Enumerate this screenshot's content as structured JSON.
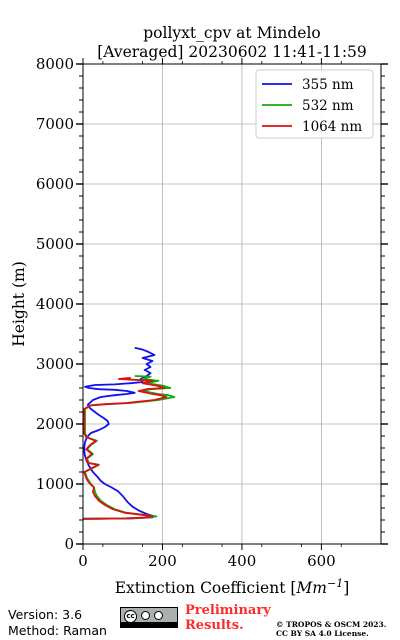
{
  "chart_data": {
    "type": "line",
    "title_line1": "pollyxt_cpv at Mindelo",
    "title_line2": "[Averaged] 20230602 11:41-11:59",
    "xlabel_prefix": "Extinction Coefficient [",
    "xlabel_unit": "Mm",
    "xlabel_exp": "−1",
    "xlabel_suffix": "]",
    "ylabel": "Height (m)",
    "xlim": [
      0,
      750
    ],
    "ylim": [
      0,
      8000
    ],
    "xticks": [
      0,
      200,
      400,
      600
    ],
    "xtick_labels": [
      "0",
      "200",
      "400",
      "600"
    ],
    "yticks": [
      0,
      1000,
      2000,
      3000,
      4000,
      5000,
      6000,
      7000,
      8000
    ],
    "ytick_labels": [
      "0",
      "1000",
      "2000",
      "3000",
      "4000",
      "5000",
      "6000",
      "7000",
      "8000"
    ],
    "grid": true,
    "legend_position": "top-right",
    "series": [
      {
        "name": "355 nm",
        "color": "#1111ee",
        "points": [
          [
            0,
            420
          ],
          [
            120,
            425
          ],
          [
            175,
            445
          ],
          [
            178,
            465
          ],
          [
            160,
            500
          ],
          [
            140,
            560
          ],
          [
            125,
            620
          ],
          [
            112,
            700
          ],
          [
            100,
            800
          ],
          [
            88,
            880
          ],
          [
            70,
            950
          ],
          [
            55,
            1000
          ],
          [
            45,
            1050
          ],
          [
            35,
            1130
          ],
          [
            25,
            1200
          ],
          [
            15,
            1300
          ],
          [
            8,
            1400
          ],
          [
            4,
            1500
          ],
          [
            3,
            1600
          ],
          [
            5,
            1700
          ],
          [
            10,
            1780
          ],
          [
            20,
            1850
          ],
          [
            40,
            1900
          ],
          [
            55,
            1950
          ],
          [
            65,
            2000
          ],
          [
            62,
            2050
          ],
          [
            52,
            2100
          ],
          [
            40,
            2150
          ],
          [
            30,
            2200
          ],
          [
            18,
            2260
          ],
          [
            12,
            2320
          ],
          [
            25,
            2400
          ],
          [
            45,
            2450
          ],
          [
            80,
            2480
          ],
          [
            110,
            2500
          ],
          [
            130,
            2520
          ],
          [
            110,
            2550
          ],
          [
            80,
            2570
          ],
          [
            40,
            2580
          ],
          [
            15,
            2600
          ],
          [
            5,
            2620
          ],
          [
            30,
            2650
          ],
          [
            80,
            2660
          ],
          [
            120,
            2680
          ],
          [
            150,
            2700
          ],
          [
            145,
            2750
          ],
          [
            160,
            2800
          ],
          [
            170,
            2850
          ],
          [
            155,
            2900
          ],
          [
            170,
            2950
          ],
          [
            160,
            3000
          ],
          [
            175,
            3050
          ],
          [
            150,
            3100
          ],
          [
            180,
            3150
          ],
          [
            165,
            3200
          ],
          [
            150,
            3240
          ],
          [
            130,
            3270
          ]
        ]
      },
      {
        "name": "532 nm",
        "color": "#11aa11",
        "points": [
          [
            0,
            420
          ],
          [
            100,
            425
          ],
          [
            160,
            440
          ],
          [
            185,
            460
          ],
          [
            160,
            480
          ],
          [
            110,
            520
          ],
          [
            80,
            580
          ],
          [
            60,
            650
          ],
          [
            45,
            720
          ],
          [
            35,
            800
          ],
          [
            30,
            870
          ],
          [
            28,
            940
          ],
          [
            20,
            1000
          ],
          [
            15,
            1050
          ],
          [
            10,
            1100
          ],
          [
            5,
            1200
          ],
          [
            20,
            1250
          ],
          [
            40,
            1320
          ],
          [
            15,
            1350
          ],
          [
            10,
            1420
          ],
          [
            25,
            1500
          ],
          [
            10,
            1580
          ],
          [
            20,
            1650
          ],
          [
            35,
            1720
          ],
          [
            10,
            1780
          ],
          [
            5,
            1850
          ],
          [
            5,
            1950
          ],
          [
            5,
            2050
          ],
          [
            5,
            2150
          ],
          [
            5,
            2250
          ],
          [
            20,
            2310
          ],
          [
            60,
            2330
          ],
          [
            120,
            2350
          ],
          [
            190,
            2400
          ],
          [
            230,
            2450
          ],
          [
            215,
            2480
          ],
          [
            190,
            2500
          ],
          [
            150,
            2550
          ],
          [
            170,
            2580
          ],
          [
            220,
            2600
          ],
          [
            200,
            2640
          ],
          [
            160,
            2680
          ],
          [
            190,
            2720
          ],
          [
            150,
            2750
          ],
          [
            170,
            2790
          ],
          [
            130,
            2800
          ]
        ]
      },
      {
        "name": "1064 nm",
        "color": "#dd1111",
        "points": [
          [
            0,
            420
          ],
          [
            100,
            425
          ],
          [
            155,
            440
          ],
          [
            175,
            460
          ],
          [
            155,
            480
          ],
          [
            105,
            520
          ],
          [
            75,
            580
          ],
          [
            55,
            650
          ],
          [
            40,
            720
          ],
          [
            30,
            800
          ],
          [
            25,
            870
          ],
          [
            28,
            940
          ],
          [
            18,
            1000
          ],
          [
            12,
            1050
          ],
          [
            8,
            1100
          ],
          [
            3,
            1200
          ],
          [
            18,
            1250
          ],
          [
            38,
            1320
          ],
          [
            12,
            1350
          ],
          [
            8,
            1420
          ],
          [
            22,
            1500
          ],
          [
            8,
            1580
          ],
          [
            18,
            1650
          ],
          [
            32,
            1720
          ],
          [
            8,
            1780
          ],
          [
            3,
            1850
          ],
          [
            3,
            1950
          ],
          [
            3,
            2050
          ],
          [
            3,
            2150
          ],
          [
            3,
            2250
          ],
          [
            18,
            2310
          ],
          [
            55,
            2330
          ],
          [
            110,
            2350
          ],
          [
            180,
            2400
          ],
          [
            210,
            2450
          ],
          [
            195,
            2480
          ],
          [
            175,
            2500
          ],
          [
            140,
            2550
          ],
          [
            160,
            2580
          ],
          [
            205,
            2600
          ],
          [
            185,
            2640
          ],
          [
            150,
            2680
          ],
          [
            175,
            2720
          ],
          [
            90,
            2750
          ],
          [
            120,
            2770
          ]
        ]
      }
    ]
  },
  "footer": {
    "version": "Version: 3.6",
    "method": "Method: Raman",
    "preliminary_line1": "Preliminary",
    "preliminary_line2": "Results.",
    "copyright_line1": "© TROPOS & OSCM 2023.",
    "copyright_line2": "CC BY SA 4.0 License."
  }
}
